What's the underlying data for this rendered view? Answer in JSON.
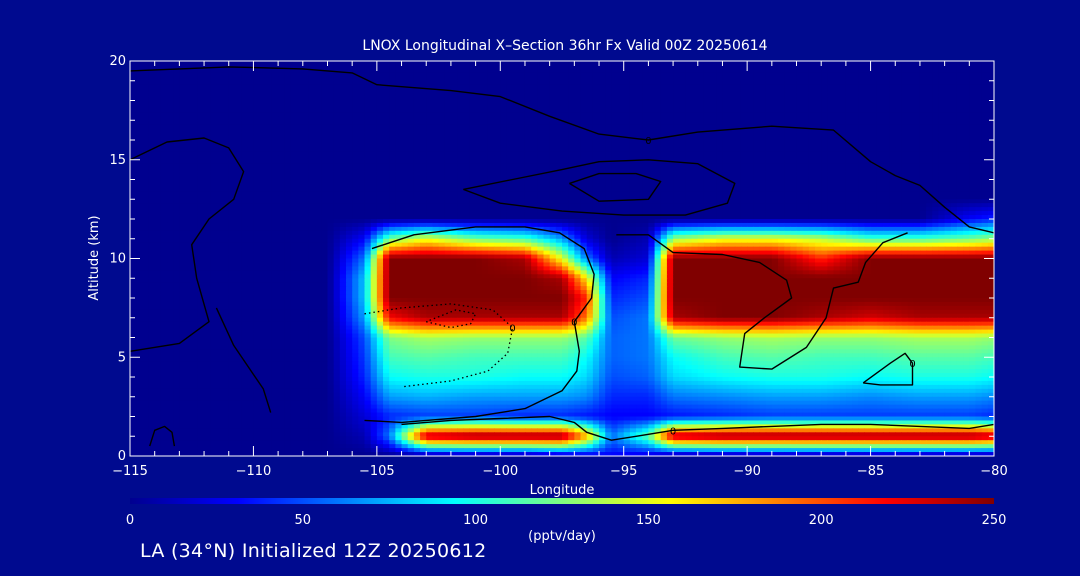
{
  "colors": {
    "background": "#000a8f",
    "axis": "#ffffff",
    "contour": "#000000",
    "colormap": [
      "#00008f",
      "#0000ff",
      "#0080ff",
      "#00ffff",
      "#80ff80",
      "#ffff00",
      "#ff8000",
      "#ff0000",
      "#800000"
    ]
  },
  "chart_data": {
    "type": "heatmap",
    "title": "LNOX Longitudinal X–Section 36hr  Fx Valid 00Z 20250614",
    "xlabel": "Longitude",
    "ylabel": "Altitude (km)",
    "xlim": [
      -115,
      -80
    ],
    "ylim": [
      0,
      20
    ],
    "x_ticks": [
      -115,
      -110,
      -105,
      -100,
      -95,
      -90,
      -85,
      -80
    ],
    "x_tick_labels": [
      "−115",
      "−110",
      "−105",
      "−100",
      "−95",
      "−90",
      "−85",
      "−80"
    ],
    "y_ticks": [
      0,
      5,
      10,
      15,
      20
    ],
    "y_tick_labels": [
      "0",
      "5",
      "10",
      "15",
      "20"
    ],
    "colorbar": {
      "min": 0,
      "max": 250,
      "ticks": [
        0,
        50,
        100,
        150,
        200,
        250
      ],
      "tick_labels": [
        "0",
        "50",
        "100",
        "150",
        "200",
        "250"
      ],
      "label": "(pptv/day)"
    },
    "x": [
      -115,
      -113,
      -111,
      -109,
      -107,
      -105.5,
      -104.5,
      -103,
      -101,
      -99,
      -97.5,
      -96.5,
      -95.5,
      -94,
      -93,
      -91,
      -89,
      -87,
      -85,
      -83,
      -81,
      -80
    ],
    "y": [
      0,
      1,
      2,
      3,
      4,
      5,
      6,
      7,
      8,
      9,
      10,
      11,
      12,
      13,
      14,
      15,
      16,
      17,
      18,
      19,
      20
    ],
    "z": [
      [
        0,
        0,
        0,
        0,
        0,
        0,
        0,
        0,
        0,
        0,
        10,
        20,
        30,
        20,
        0,
        0,
        0,
        0,
        0,
        0,
        0,
        0
      ],
      [
        0,
        0,
        0,
        0,
        0,
        10,
        60,
        240,
        250,
        250,
        250,
        180,
        60,
        120,
        240,
        250,
        250,
        250,
        250,
        250,
        250,
        240
      ],
      [
        0,
        0,
        0,
        0,
        0,
        20,
        40,
        45,
        45,
        40,
        40,
        35,
        30,
        30,
        35,
        40,
        45,
        45,
        45,
        45,
        45,
        40
      ],
      [
        0,
        0,
        0,
        0,
        0,
        30,
        70,
        75,
        70,
        70,
        70,
        65,
        40,
        40,
        60,
        65,
        70,
        70,
        65,
        70,
        70,
        65
      ],
      [
        0,
        0,
        0,
        0,
        0,
        40,
        95,
        100,
        100,
        95,
        95,
        85,
        50,
        55,
        85,
        95,
        100,
        100,
        95,
        100,
        100,
        95
      ],
      [
        0,
        0,
        0,
        0,
        0,
        45,
        110,
        115,
        110,
        110,
        110,
        95,
        55,
        60,
        95,
        110,
        115,
        110,
        110,
        115,
        115,
        110
      ],
      [
        0,
        0,
        0,
        0,
        0,
        50,
        125,
        135,
        130,
        130,
        130,
        115,
        55,
        60,
        120,
        130,
        135,
        130,
        130,
        135,
        135,
        130
      ],
      [
        0,
        0,
        0,
        0,
        0,
        70,
        220,
        240,
        240,
        240,
        240,
        190,
        50,
        60,
        240,
        250,
        250,
        240,
        230,
        240,
        240,
        240
      ],
      [
        0,
        0,
        0,
        0,
        0,
        80,
        250,
        250,
        250,
        250,
        250,
        210,
        40,
        50,
        250,
        250,
        250,
        250,
        250,
        250,
        250,
        250
      ],
      [
        0,
        0,
        0,
        0,
        0,
        80,
        250,
        250,
        250,
        250,
        240,
        160,
        30,
        40,
        250,
        250,
        250,
        250,
        250,
        250,
        250,
        250
      ],
      [
        0,
        0,
        0,
        0,
        0,
        60,
        250,
        250,
        250,
        240,
        150,
        60,
        10,
        20,
        250,
        250,
        250,
        210,
        250,
        250,
        250,
        250
      ],
      [
        0,
        0,
        0,
        0,
        0,
        30,
        120,
        150,
        120,
        110,
        70,
        20,
        0,
        10,
        130,
        150,
        150,
        140,
        110,
        110,
        120,
        130
      ],
      [
        0,
        0,
        0,
        0,
        0,
        0,
        0,
        0,
        0,
        0,
        0,
        0,
        0,
        0,
        0,
        0,
        0,
        0,
        0,
        0,
        30,
        40
      ],
      [
        0,
        0,
        0,
        0,
        0,
        0,
        0,
        0,
        0,
        0,
        0,
        0,
        0,
        0,
        0,
        0,
        0,
        0,
        0,
        0,
        0,
        0
      ],
      [
        0,
        0,
        0,
        0,
        0,
        0,
        0,
        0,
        0,
        0,
        0,
        0,
        0,
        0,
        0,
        0,
        0,
        0,
        0,
        0,
        0,
        0
      ],
      [
        0,
        0,
        0,
        0,
        0,
        0,
        0,
        0,
        0,
        0,
        0,
        0,
        0,
        0,
        0,
        0,
        0,
        0,
        0,
        0,
        0,
        0
      ],
      [
        0,
        0,
        0,
        0,
        0,
        0,
        0,
        0,
        0,
        0,
        0,
        0,
        0,
        0,
        0,
        0,
        0,
        0,
        0,
        0,
        0,
        0
      ],
      [
        0,
        0,
        0,
        0,
        0,
        0,
        0,
        0,
        0,
        0,
        0,
        0,
        0,
        0,
        0,
        0,
        0,
        0,
        0,
        0,
        0,
        0
      ],
      [
        0,
        0,
        0,
        0,
        0,
        0,
        0,
        0,
        0,
        0,
        0,
        0,
        0,
        0,
        0,
        0,
        0,
        0,
        0,
        0,
        0,
        0
      ],
      [
        0,
        0,
        0,
        0,
        0,
        0,
        0,
        0,
        0,
        0,
        0,
        0,
        0,
        0,
        0,
        0,
        0,
        0,
        0,
        0,
        0,
        0
      ],
      [
        0,
        0,
        0,
        0,
        0,
        0,
        0,
        0,
        0,
        0,
        0,
        0,
        0,
        0,
        0,
        0,
        0,
        0,
        0,
        0,
        0,
        0
      ]
    ],
    "contours": [
      {
        "label": "0",
        "style": "solid",
        "points": [
          [
            -115,
            19.5
          ],
          [
            -111,
            19.7
          ],
          [
            -108,
            19.6
          ],
          [
            -106,
            19.4
          ],
          [
            -105,
            18.8
          ],
          [
            -102,
            18.5
          ],
          [
            -100,
            18.2
          ],
          [
            -98,
            17.2
          ],
          [
            -96,
            16.3
          ],
          [
            -94,
            16.0
          ],
          [
            -92,
            16.4
          ],
          [
            -89,
            16.7
          ],
          [
            -86.5,
            16.5
          ],
          [
            -85,
            14.9
          ],
          [
            -84,
            14.2
          ],
          [
            -83,
            13.7
          ],
          [
            -82,
            12.6
          ],
          [
            -81,
            11.6
          ],
          [
            -80,
            11.3
          ]
        ]
      },
      {
        "label": "0",
        "style": "solid",
        "points": [
          [
            -105.2,
            10.5
          ],
          [
            -103.5,
            11.2
          ],
          [
            -101,
            11.6
          ],
          [
            -99,
            11.6
          ],
          [
            -97.6,
            11.3
          ],
          [
            -96.6,
            10.5
          ],
          [
            -96.2,
            9.2
          ],
          [
            -96.3,
            8.0
          ],
          [
            -97.0,
            6.8
          ],
          [
            -96.8,
            5.3
          ],
          [
            -96.9,
            4.3
          ],
          [
            -97.5,
            3.3
          ],
          [
            -99,
            2.4
          ],
          [
            -101,
            2.0
          ],
          [
            -104,
            1.7
          ],
          [
            -105.5,
            1.8
          ]
        ]
      },
      {
        "label": "0",
        "style": "solid",
        "points": [
          [
            -104,
            1.6
          ],
          [
            -102,
            1.8
          ],
          [
            -100,
            1.9
          ],
          [
            -98,
            2.0
          ],
          [
            -97,
            1.7
          ],
          [
            -96.5,
            1.2
          ],
          [
            -95.5,
            0.8
          ],
          [
            -94.5,
            1.0
          ],
          [
            -93,
            1.3
          ],
          [
            -91,
            1.4
          ],
          [
            -89,
            1.5
          ],
          [
            -87,
            1.6
          ],
          [
            -85,
            1.6
          ],
          [
            -83,
            1.5
          ],
          [
            -81,
            1.4
          ],
          [
            -80,
            1.6
          ]
        ]
      },
      {
        "label": "",
        "style": "solid",
        "points": [
          [
            -101.5,
            13.5
          ],
          [
            -99.5,
            14.0
          ],
          [
            -97.5,
            14.5
          ],
          [
            -96,
            14.9
          ],
          [
            -94,
            15.0
          ],
          [
            -92,
            14.8
          ],
          [
            -90.5,
            13.8
          ],
          [
            -90.8,
            12.8
          ],
          [
            -92.5,
            12.2
          ],
          [
            -95,
            12.2
          ],
          [
            -97.5,
            12.4
          ],
          [
            -100,
            12.8
          ],
          [
            -101.5,
            13.5
          ]
        ]
      },
      {
        "label": "",
        "style": "solid",
        "points": [
          [
            -97.2,
            13.8
          ],
          [
            -96,
            14.3
          ],
          [
            -94.5,
            14.3
          ],
          [
            -93.5,
            13.9
          ],
          [
            -94,
            13.0
          ],
          [
            -96,
            12.9
          ],
          [
            -97.2,
            13.8
          ]
        ]
      },
      {
        "label": "",
        "style": "solid",
        "points": [
          [
            -95.3,
            11.2
          ],
          [
            -94,
            11.2
          ],
          [
            -93,
            10.3
          ],
          [
            -91,
            10.2
          ],
          [
            -89.5,
            9.8
          ],
          [
            -88.4,
            8.9
          ],
          [
            -88.2,
            8.0
          ],
          [
            -89.3,
            7.0
          ],
          [
            -90.1,
            6.2
          ],
          [
            -90.3,
            4.5
          ],
          [
            -89,
            4.4
          ],
          [
            -87.6,
            5.5
          ],
          [
            -86.8,
            7.0
          ],
          [
            -86.5,
            8.5
          ],
          [
            -85.5,
            8.8
          ],
          [
            -85.2,
            9.8
          ],
          [
            -84.5,
            10.8
          ],
          [
            -83.5,
            11.3
          ]
        ]
      },
      {
        "label": "0",
        "style": "solid",
        "points": [
          [
            -85.3,
            3.7
          ],
          [
            -84.2,
            4.7
          ],
          [
            -83.6,
            5.2
          ],
          [
            -83.3,
            4.7
          ],
          [
            -83.3,
            3.6
          ],
          [
            -84.6,
            3.6
          ],
          [
            -85.3,
            3.7
          ]
        ]
      },
      {
        "label": "",
        "style": "solid",
        "points": [
          [
            -115,
            15.0
          ],
          [
            -113.5,
            15.9
          ],
          [
            -112,
            16.1
          ],
          [
            -111,
            15.6
          ],
          [
            -110.4,
            14.4
          ],
          [
            -110.8,
            13.0
          ],
          [
            -111.8,
            12.0
          ],
          [
            -112.5,
            10.7
          ],
          [
            -112.3,
            9.0
          ],
          [
            -111.8,
            6.8
          ],
          [
            -113,
            5.7
          ],
          [
            -115,
            5.3
          ]
        ]
      },
      {
        "label": "",
        "style": "solid",
        "points": [
          [
            -109.3,
            2.2
          ],
          [
            -109.6,
            3.4
          ],
          [
            -110.8,
            5.6
          ],
          [
            -111.5,
            7.5
          ]
        ]
      },
      {
        "label": "",
        "style": "solid",
        "points": [
          [
            -114.2,
            0.5
          ],
          [
            -114,
            1.3
          ],
          [
            -113.6,
            1.5
          ],
          [
            -113.3,
            1.2
          ],
          [
            -113.2,
            0.5
          ]
        ]
      },
      {
        "label": "0",
        "style": "dotted",
        "points": [
          [
            -105.5,
            7.2
          ],
          [
            -104,
            7.5
          ],
          [
            -102,
            7.7
          ],
          [
            -100.3,
            7.4
          ],
          [
            -99.5,
            6.5
          ],
          [
            -99.7,
            5.2
          ],
          [
            -100.5,
            4.3
          ],
          [
            -102,
            3.8
          ],
          [
            -104,
            3.5
          ]
        ]
      },
      {
        "label": "",
        "style": "dotted",
        "points": [
          [
            -103,
            6.8
          ],
          [
            -102,
            6.5
          ],
          [
            -101.2,
            6.7
          ],
          [
            -101.0,
            7.2
          ],
          [
            -101.8,
            7.4
          ],
          [
            -103,
            6.8
          ]
        ]
      }
    ]
  },
  "footer": {
    "text": "LA (34°N) Initialized 12Z 20250612"
  }
}
